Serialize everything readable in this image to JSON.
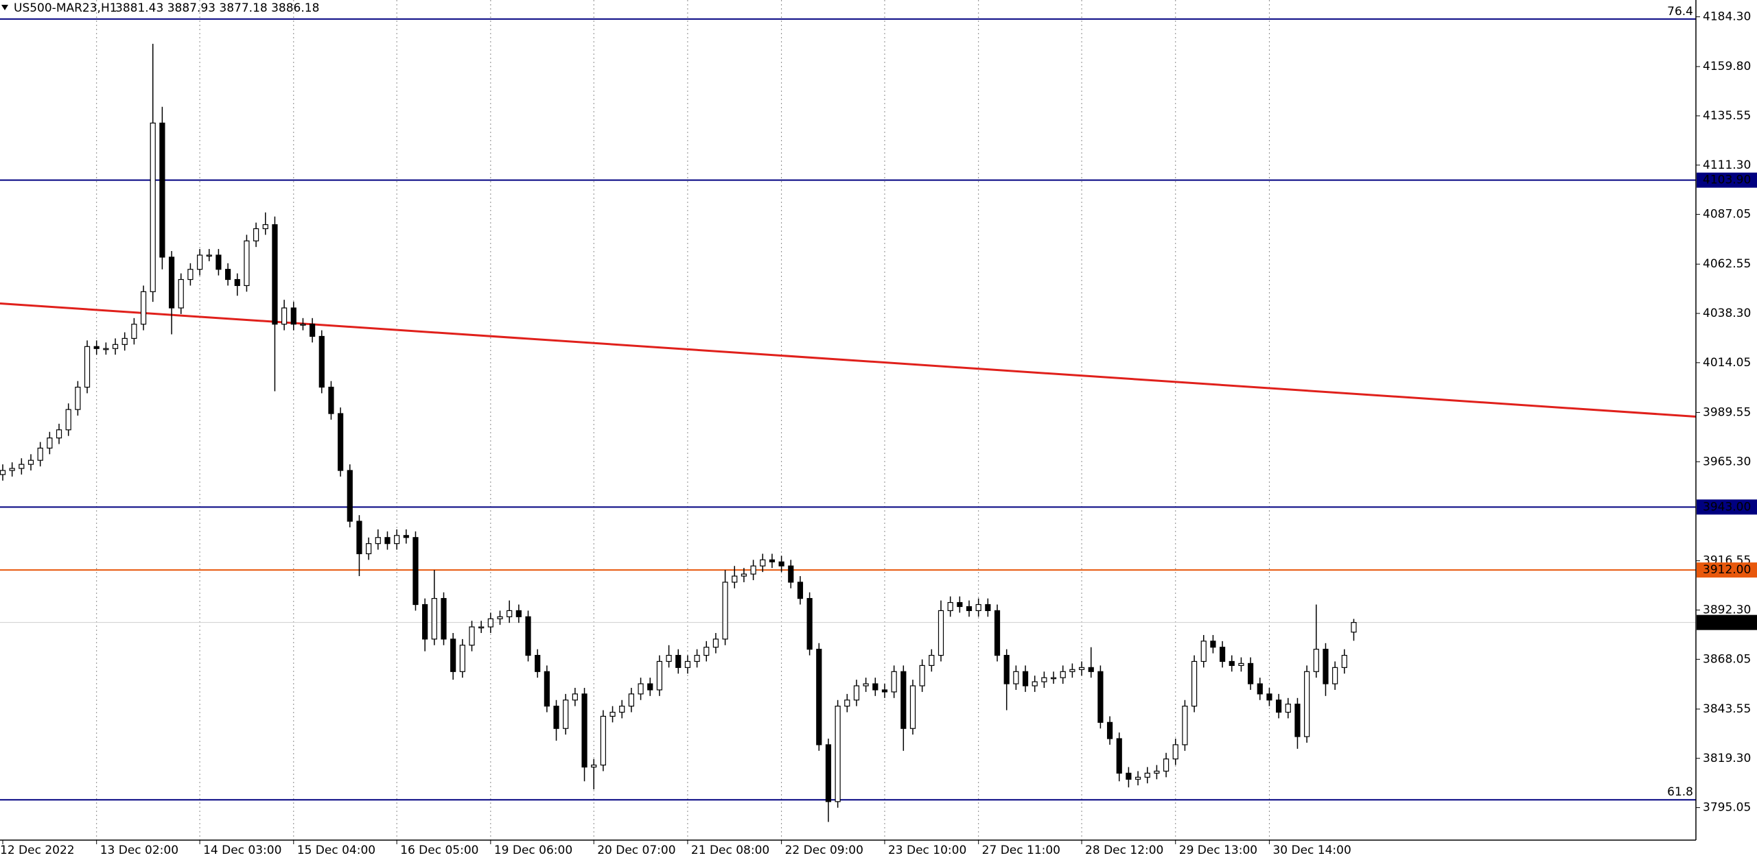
{
  "chart_data": {
    "type": "candlestick",
    "title": "US500-MAR23,H1",
    "ohlc_label": "3881.43 3887.93 3877.18 3886.18",
    "categories": [
      "12 Dec 2022",
      null,
      null,
      null,
      null,
      null,
      null,
      null,
      null,
      null,
      "13 Dec 02:00",
      null,
      null,
      null,
      null,
      null,
      null,
      null,
      null,
      null,
      null,
      "14 Dec 03:00",
      null,
      null,
      null,
      null,
      null,
      null,
      null,
      null,
      null,
      "15 Dec 04:00",
      null,
      null,
      null,
      null,
      null,
      null,
      null,
      null,
      null,
      null,
      "16 Dec 05:00",
      null,
      null,
      null,
      null,
      null,
      null,
      null,
      null,
      null,
      "19 Dec 06:00",
      null,
      null,
      null,
      null,
      null,
      null,
      null,
      null,
      null,
      null,
      "20 Dec 07:00",
      null,
      null,
      null,
      null,
      null,
      null,
      null,
      null,
      null,
      "21 Dec 08:00",
      null,
      null,
      null,
      null,
      null,
      null,
      null,
      null,
      null,
      "22 Dec 09:00",
      null,
      null,
      null,
      null,
      null,
      null,
      null,
      null,
      null,
      null,
      "23 Dec 10:00",
      null,
      null,
      null,
      null,
      null,
      null,
      null,
      null,
      null,
      "27 Dec 11:00",
      null,
      null,
      null,
      null,
      null,
      null,
      null,
      null,
      null,
      null,
      "28 Dec 12:00",
      null,
      null,
      null,
      null,
      null,
      null,
      null,
      null,
      null,
      "29 Dec 13:00",
      null,
      null,
      null,
      null,
      null,
      null,
      null,
      null,
      null,
      "30 Dec 14:00",
      null,
      null,
      null,
      null,
      null,
      null,
      null,
      null,
      null
    ],
    "open": [
      3959,
      3961,
      3962,
      3964,
      3966,
      3972,
      3977,
      3981,
      3991,
      4002,
      4022,
      4021,
      4021,
      4023,
      4026,
      4033,
      4049,
      4132,
      4066,
      4041,
      4055,
      4060,
      4067,
      4067,
      4060,
      4055,
      4052,
      4074,
      4080,
      4082,
      4033,
      4041,
      4033,
      4033,
      4027,
      4002,
      3989,
      3961,
      3936,
      3920,
      3925,
      3928,
      3925,
      3929,
      3928,
      3895,
      3878,
      3898,
      3878,
      3862,
      3875,
      3884,
      3884,
      3888,
      3889,
      3892,
      3889,
      3870,
      3862,
      3845,
      3834,
      3848,
      3851,
      3815,
      3816,
      3840,
      3842,
      3845,
      3851,
      3856,
      3853,
      3867,
      3870,
      3864,
      3867,
      3870,
      3874,
      3878,
      3906,
      3909,
      3910,
      3914,
      3917,
      3916,
      3914,
      3906,
      3898,
      3873,
      3826,
      3798,
      3845,
      3848,
      3855,
      3856,
      3853,
      3852,
      3862,
      3834,
      3855,
      3865,
      3870,
      3892,
      3896,
      3894,
      3892,
      3895,
      3892,
      3870,
      3856,
      3862,
      3855,
      3857,
      3859,
      3859,
      3862,
      3863,
      3864,
      3862,
      3837,
      3829,
      3812,
      3809,
      3810,
      3812,
      3813,
      3819,
      3826,
      3845,
      3867,
      3877,
      3874,
      3867,
      3865,
      3866,
      3856,
      3851,
      3848,
      3842,
      3846,
      3830,
      3862,
      3873,
      3856,
      3864,
      3881.43
    ],
    "high": [
      3964,
      3965,
      3967,
      3969,
      3975,
      3980,
      3984,
      3994,
      4005,
      4025,
      4025,
      4024,
      4026,
      4029,
      4036,
      4052,
      4171,
      4140,
      4069,
      4058,
      4063,
      4070,
      4070,
      4070,
      4063,
      4058,
      4077,
      4083,
      4088,
      4086,
      4045,
      4044,
      4036,
      4036,
      4030,
      4005,
      3992,
      3964,
      3939,
      3928,
      3932,
      3931,
      3932,
      3932,
      3931,
      3898,
      3912,
      3901,
      3881,
      3878,
      3887,
      3887,
      3891,
      3892,
      3897,
      3895,
      3892,
      3873,
      3865,
      3848,
      3851,
      3854,
      3854,
      3819,
      3843,
      3845,
      3848,
      3854,
      3859,
      3859,
      3870,
      3875,
      3873,
      3870,
      3873,
      3877,
      3881,
      3912,
      3914,
      3913,
      3917,
      3920,
      3920,
      3919,
      3917,
      3909,
      3901,
      3876,
      3829,
      3848,
      3851,
      3858,
      3859,
      3859,
      3856,
      3865,
      3865,
      3858,
      3868,
      3873,
      3897,
      3899,
      3899,
      3897,
      3898,
      3898,
      3895,
      3873,
      3865,
      3865,
      3860,
      3862,
      3862,
      3865,
      3866,
      3867,
      3874,
      3865,
      3840,
      3832,
      3815,
      3813,
      3815,
      3816,
      3822,
      3829,
      3848,
      3870,
      3880,
      3880,
      3877,
      3870,
      3869,
      3869,
      3859,
      3854,
      3851,
      3849,
      3849,
      3865,
      3895,
      3876,
      3867,
      3873,
      3887.93
    ],
    "low": [
      3956,
      3958,
      3959,
      3961,
      3963,
      3969,
      3974,
      3978,
      3988,
      3999,
      4018,
      4018,
      4018,
      4020,
      4023,
      4030,
      4044,
      4060,
      4028,
      4038,
      4052,
      4057,
      4064,
      4057,
      4052,
      4047,
      4049,
      4071,
      4077,
      4000,
      4030,
      4030,
      4030,
      4024,
      3999,
      3986,
      3958,
      3933,
      3909,
      3917,
      3922,
      3922,
      3922,
      3925,
      3892,
      3872,
      3875,
      3875,
      3858,
      3859,
      3872,
      3881,
      3881,
      3885,
      3886,
      3886,
      3867,
      3859,
      3842,
      3828,
      3831,
      3845,
      3808,
      3804,
      3813,
      3837,
      3839,
      3842,
      3848,
      3850,
      3850,
      3864,
      3861,
      3861,
      3864,
      3867,
      3871,
      3875,
      3903,
      3906,
      3907,
      3911,
      3913,
      3911,
      3903,
      3895,
      3870,
      3823,
      3788,
      3795,
      3842,
      3845,
      3852,
      3850,
      3849,
      3849,
      3823,
      3831,
      3852,
      3862,
      3867,
      3889,
      3891,
      3889,
      3889,
      3889,
      3867,
      3843,
      3853,
      3852,
      3852,
      3854,
      3856,
      3856,
      3859,
      3860,
      3859,
      3834,
      3826,
      3808,
      3805,
      3806,
      3807,
      3809,
      3810,
      3816,
      3823,
      3842,
      3864,
      3871,
      3864,
      3862,
      3862,
      3853,
      3848,
      3845,
      3839,
      3839,
      3824,
      3827,
      3859,
      3850,
      3853,
      3861,
      3877.18
    ],
    "close": [
      3961,
      3962,
      3964,
      3966,
      3972,
      3977,
      3981,
      3991,
      4002,
      4022,
      4021,
      4021,
      4023,
      4026,
      4033,
      4049,
      4132,
      4066,
      4041,
      4055,
      4060,
      4067,
      4067,
      4060,
      4055,
      4052,
      4074,
      4080,
      4082,
      4033,
      4041,
      4033,
      4033,
      4027,
      4002,
      3989,
      3961,
      3936,
      3920,
      3925,
      3928,
      3925,
      3929,
      3928,
      3895,
      3878,
      3898,
      3878,
      3862,
      3875,
      3884,
      3884,
      3888,
      3889,
      3892,
      3889,
      3870,
      3862,
      3845,
      3834,
      3848,
      3851,
      3815,
      3816,
      3840,
      3842,
      3845,
      3851,
      3856,
      3853,
      3867,
      3870,
      3864,
      3867,
      3870,
      3874,
      3878,
      3906,
      3909,
      3910,
      3914,
      3917,
      3916,
      3914,
      3906,
      3898,
      3873,
      3826,
      3798,
      3845,
      3848,
      3855,
      3856,
      3853,
      3852,
      3862,
      3834,
      3855,
      3865,
      3870,
      3892,
      3896,
      3894,
      3892,
      3895,
      3892,
      3870,
      3856,
      3862,
      3855,
      3857,
      3859,
      3859,
      3862,
      3863,
      3864,
      3862,
      3837,
      3829,
      3812,
      3809,
      3810,
      3812,
      3813,
      3819,
      3826,
      3845,
      3867,
      3877,
      3874,
      3867,
      3865,
      3866,
      3856,
      3851,
      3848,
      3842,
      3846,
      3830,
      3862,
      3873,
      3856,
      3864,
      3870,
      3886.18
    ],
    "up_color": "#ffffff",
    "down_color": "#000000",
    "ylim": [
      3779.05,
      4192.57
    ],
    "yticks": [
      {
        "value": 4184.3,
        "label": "4184.30"
      },
      {
        "value": 4159.8,
        "label": "4159.80"
      },
      {
        "value": 4135.55,
        "label": "4135.55"
      },
      {
        "value": 4111.3,
        "label": "4111.30"
      },
      {
        "value": 4087.05,
        "label": "4087.05"
      },
      {
        "value": 4062.55,
        "label": "4062.55"
      },
      {
        "value": 4038.3,
        "label": "4038.30"
      },
      {
        "value": 4014.05,
        "label": "4014.05"
      },
      {
        "value": 3989.55,
        "label": "3989.55"
      },
      {
        "value": 3965.3,
        "label": "3965.30"
      },
      {
        "value": 3916.55,
        "label": "3916.55"
      },
      {
        "value": 3892.3,
        "label": "3892.30"
      },
      {
        "value": 3868.05,
        "label": "3868.05"
      },
      {
        "value": 3843.55,
        "label": "3843.55"
      },
      {
        "value": 3819.3,
        "label": "3819.30"
      },
      {
        "value": 3795.05,
        "label": "3795.05"
      }
    ],
    "levels": [
      {
        "value": 4103.9,
        "label": "4103.90",
        "color": "#000080"
      },
      {
        "value": 3943,
        "label": "3943.00",
        "color": "#000080"
      },
      {
        "value": 3912,
        "label": "3912.00",
        "color": "#e8580c"
      },
      {
        "value": 3886.18,
        "label": "3886.18",
        "color": "#000000",
        "line_color": "#cfcfcf"
      }
    ],
    "fibo_levels": [
      {
        "value": 4183.2,
        "label": "76.4",
        "color": "#000080"
      },
      {
        "value": 3798.9,
        "label": "61.8",
        "color": "#000080"
      }
    ],
    "trendline": {
      "start": 4043.2,
      "end": 3987.5,
      "color": "#e0201b"
    },
    "grid": true
  }
}
